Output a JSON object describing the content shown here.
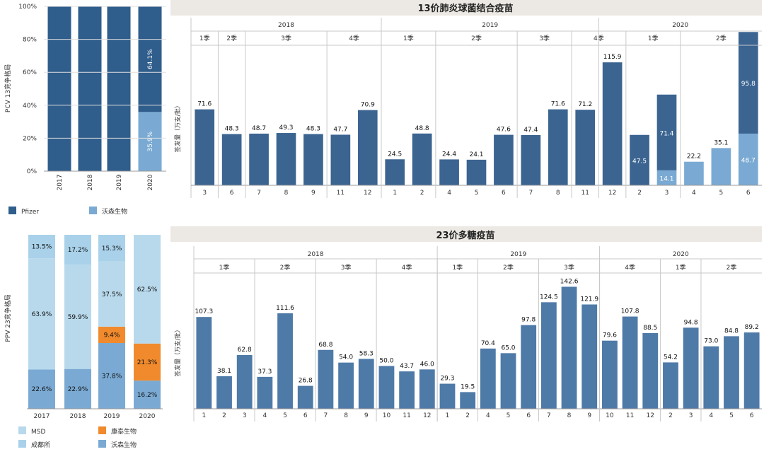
{
  "colors": {
    "pfizer": "#2f5d8c",
    "walvax": "#7aaad3",
    "msd": "#b8d9ec",
    "chengdu": "#a9d1ea",
    "kangtai": "#f08a2c",
    "walvax_ppv": "#7aaad3",
    "bar13": "#3b6491",
    "bar23": "#4e7aa8",
    "title_bg": "#ece9e4",
    "grid": "#c8c8c8"
  },
  "chart_data": [
    {
      "id": "pcv13-share",
      "type": "bar",
      "stacked": true,
      "percent": true,
      "ylabel": "PCV 13竞争格局",
      "yticks": [
        "0%",
        "20%",
        "40%",
        "60%",
        "80%",
        "100%"
      ],
      "categories": [
        "2017",
        "2018",
        "2019",
        "2020"
      ],
      "series": [
        {
          "name": "沃森生物",
          "color": "#7aaad3",
          "values": [
            0,
            0,
            0,
            35.9
          ],
          "labels": [
            "",
            "",
            "",
            "35.9%"
          ]
        },
        {
          "name": "Pfizer",
          "color": "#2f5d8c",
          "values": [
            100,
            100,
            100,
            64.1
          ],
          "labels": [
            "",
            "",
            "",
            "64.1%"
          ]
        }
      ],
      "legend": [
        "Pfizer",
        "沃森生物"
      ]
    },
    {
      "id": "pcv13-batches",
      "type": "bar",
      "title": "13价肺炎球菌结合疫苗",
      "ylabel": "签发量（万支/批）",
      "years": [
        {
          "label": "2018",
          "from": 0,
          "to": 7
        },
        {
          "label": "2019",
          "from": 7,
          "to": 15
        },
        {
          "label": "2020",
          "from": 15,
          "to": 20
        }
      ],
      "quarters": [
        {
          "label": "1季",
          "from": 0,
          "to": 1
        },
        {
          "label": "2季",
          "from": 1,
          "to": 2
        },
        {
          "label": "3季",
          "from": 2,
          "to": 5
        },
        {
          "label": "4季",
          "from": 5,
          "to": 7
        },
        {
          "label": "1季",
          "from": 7,
          "to": 9
        },
        {
          "label": "2季",
          "from": 9,
          "to": 12
        },
        {
          "label": "3季",
          "from": 12,
          "to": 14
        },
        {
          "label": "4季",
          "from": 14,
          "to": 16
        },
        {
          "label": "1季",
          "from": 16,
          "to": 18
        },
        {
          "label": "2季",
          "from": 18,
          "to": 21
        }
      ],
      "months": [
        "3",
        "6",
        "7",
        "8",
        "9",
        "11",
        "12",
        "1",
        "2",
        "4",
        "5",
        "6",
        "7",
        "8",
        "11",
        "12",
        "2",
        "3",
        "4",
        "5",
        "6"
      ],
      "pfizer": [
        71.6,
        48.3,
        48.7,
        49.3,
        48.3,
        47.7,
        70.9,
        24.5,
        48.8,
        24.4,
        24.1,
        47.6,
        47.4,
        71.6,
        71.2,
        115.9,
        47.5,
        71.4,
        0,
        0,
        95.8
      ],
      "walvax": [
        0,
        0,
        0,
        0,
        0,
        0,
        0,
        0,
        0,
        0,
        0,
        0,
        0,
        0,
        0,
        0,
        0,
        14.1,
        22.2,
        35.1,
        48.7
      ]
    },
    {
      "id": "ppv23-share",
      "type": "bar",
      "stacked": true,
      "percent": true,
      "ylabel": "PPV 23竞争格局",
      "categories": [
        "2017",
        "2018",
        "2019",
        "2020"
      ],
      "series": [
        {
          "name": "沃森生物",
          "color": "#7aaad3",
          "values": [
            22.6,
            22.9,
            37.8,
            16.2
          ]
        },
        {
          "name": "康泰生物",
          "color": "#f08a2c",
          "values": [
            0,
            0,
            9.4,
            21.3
          ]
        },
        {
          "name": "成都所",
          "color": "#b8d9ec",
          "values": [
            63.9,
            59.9,
            37.5,
            62.5
          ]
        },
        {
          "name": "MSD",
          "color": "#a9d1ea",
          "values": [
            13.5,
            17.2,
            15.3,
            0
          ]
        }
      ],
      "labels": [
        [
          "22.6%",
          "",
          "63.9%",
          "13.5%"
        ],
        [
          "22.9%",
          "",
          "59.9%",
          "17.2%"
        ],
        [
          "37.8%",
          "9.4%",
          "37.5%",
          "15.3%"
        ],
        [
          "16.2%",
          "21.3%",
          "62.5%",
          ""
        ]
      ],
      "legend": [
        "MSD",
        "康泰生物",
        "成都所",
        "沃森生物"
      ]
    },
    {
      "id": "ppv23-batches",
      "type": "bar",
      "title": "23价多糖疫苗",
      "ylabel": "签发量（万支/批）",
      "years": [
        {
          "label": "2018",
          "from": 0,
          "to": 12
        },
        {
          "label": "2019",
          "from": 12,
          "to": 20
        },
        {
          "label": "2020",
          "from": 20,
          "to": 24
        }
      ],
      "quarters": [
        {
          "label": "1季",
          "from": 0,
          "to": 3
        },
        {
          "label": "2季",
          "from": 3,
          "to": 6
        },
        {
          "label": "3季",
          "from": 6,
          "to": 9
        },
        {
          "label": "4季",
          "from": 9,
          "to": 12
        },
        {
          "label": "1季",
          "from": 12,
          "to": 14
        },
        {
          "label": "2季",
          "from": 14,
          "to": 17
        },
        {
          "label": "3季",
          "from": 17,
          "to": 20
        },
        {
          "label": "4季",
          "from": 20,
          "to": 23
        },
        {
          "label": "1季",
          "from": 23,
          "to": 25
        },
        {
          "label": "2季",
          "from": 25,
          "to": 28
        }
      ],
      "months": [
        "1",
        "2",
        "3",
        "4",
        "5",
        "6",
        "7",
        "8",
        "9",
        "10",
        "11",
        "12",
        "1",
        "2",
        "4",
        "5",
        "6",
        "7",
        "8",
        "9",
        "10",
        "11",
        "12",
        "2",
        "3",
        "4",
        "5",
        "6"
      ],
      "values": [
        107.3,
        38.1,
        62.8,
        37.3,
        111.6,
        26.8,
        68.8,
        54.0,
        58.3,
        50.0,
        43.7,
        46.0,
        29.3,
        19.5,
        70.4,
        65.0,
        97.8,
        124.5,
        142.6,
        121.9,
        79.6,
        107.8,
        88.5,
        54.2,
        94.8,
        73.0,
        84.8,
        89.2
      ]
    }
  ]
}
